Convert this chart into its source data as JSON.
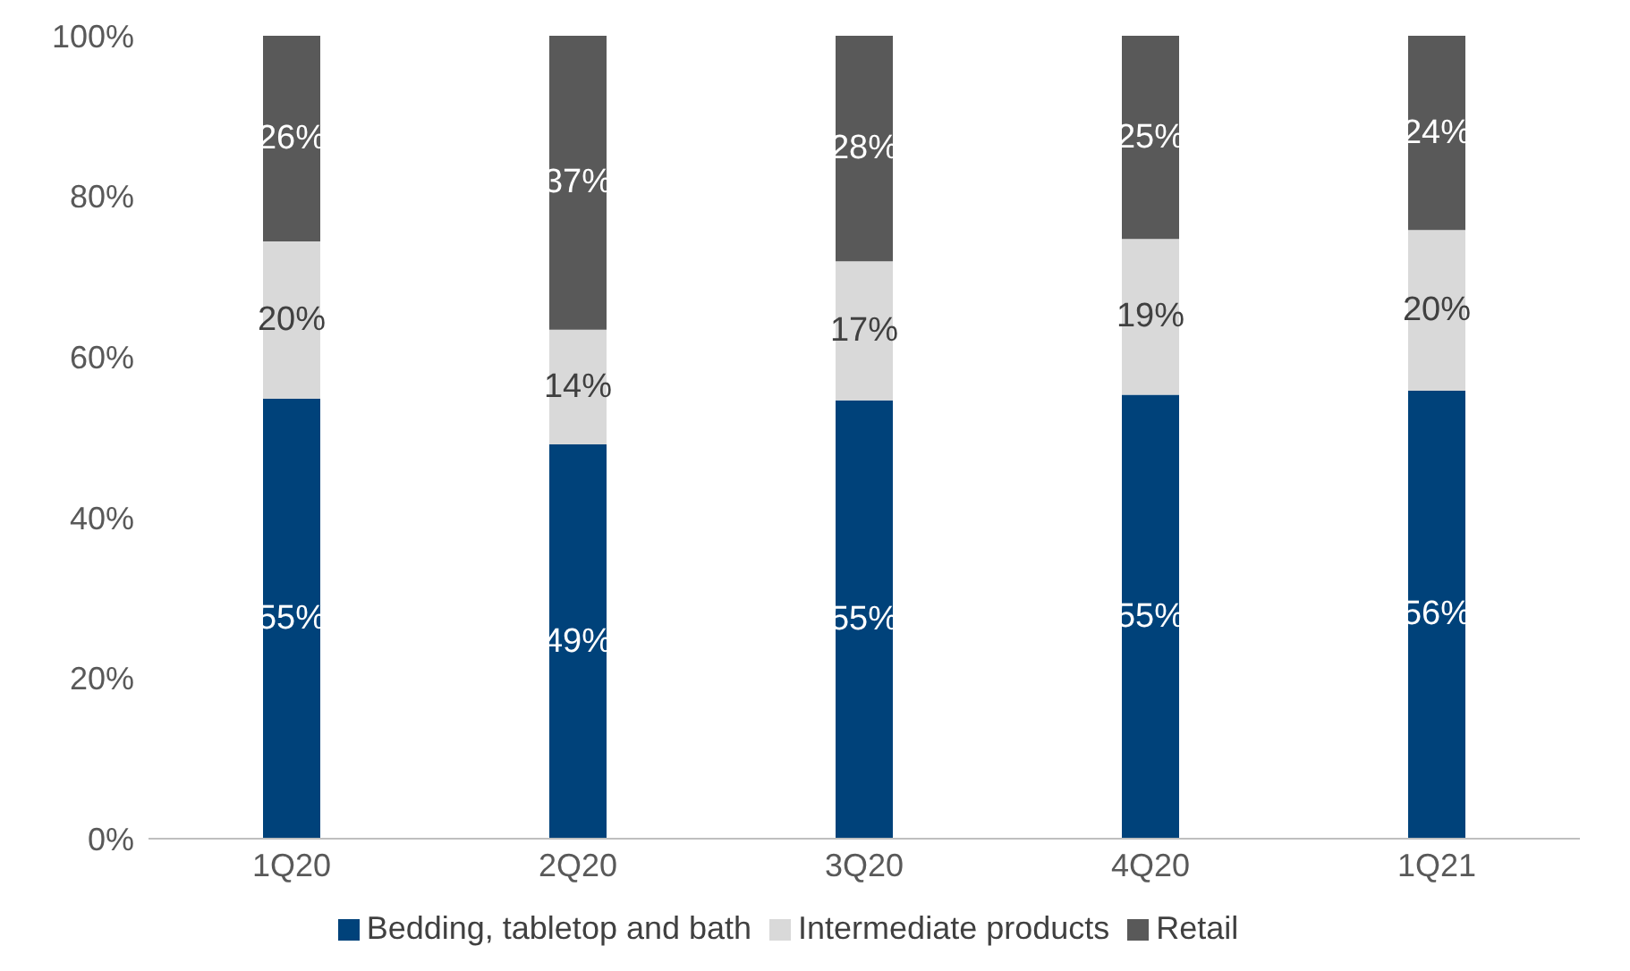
{
  "chart_data": {
    "type": "bar",
    "stacked": true,
    "categories": [
      "1Q20",
      "2Q20",
      "3Q20",
      "4Q20",
      "1Q21"
    ],
    "series": [
      {
        "name": "Bedding, tabletop and bath",
        "color": "#00427a",
        "values": [
          54.8,
          49.1,
          54.6,
          55.3,
          55.8
        ],
        "value_labels": [
          "55%",
          "49%",
          "55%",
          "55%",
          "56%"
        ]
      },
      {
        "name": "Intermediate products",
        "color": "#d9d9d9",
        "values": [
          19.6,
          14.3,
          17.3,
          19.4,
          20.0
        ],
        "value_labels": [
          "20%",
          "14%",
          "17%",
          "19%",
          "20%"
        ]
      },
      {
        "name": "Retail",
        "color": "#595959",
        "values": [
          25.6,
          36.6,
          28.1,
          25.3,
          24.2
        ],
        "value_labels": [
          "26%",
          "37%",
          "28%",
          "25%",
          "24%"
        ]
      }
    ],
    "ylim": [
      0,
      100
    ],
    "yticks": [
      {
        "value": 0,
        "label": "0%"
      },
      {
        "value": 20,
        "label": "20%"
      },
      {
        "value": 40,
        "label": "40%"
      },
      {
        "value": 60,
        "label": "60%"
      },
      {
        "value": 80,
        "label": "80%"
      },
      {
        "value": 100,
        "label": "100%"
      }
    ],
    "grid": false,
    "legend": "bottom"
  }
}
